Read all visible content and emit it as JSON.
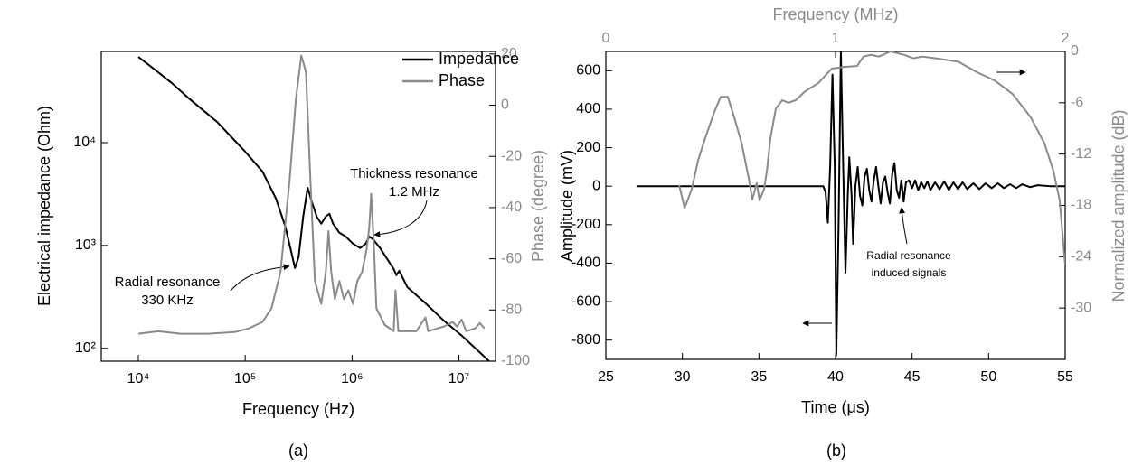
{
  "chart_data": [
    {
      "type": "line",
      "x_label": "Frequency (Hz)",
      "y_label": "Electrical impedance (Ohm)",
      "y2_label": "Phase (degree)",
      "caption": "(a)",
      "annotations": [
        "Thickness resonance",
        "1.2 MHz",
        "Radial resonance",
        "330 KHz"
      ],
      "xscale": "log",
      "yscale": "log",
      "legend": "upper right",
      "xlim": [
        4500,
        22000000
      ],
      "xticks": [
        {
          "value": 10000,
          "label": "10⁴"
        },
        {
          "value": 100000,
          "label": "10⁵"
        },
        {
          "value": 1000000,
          "label": "10⁶"
        },
        {
          "value": 10000000,
          "label": "10⁷"
        }
      ],
      "ylim": [
        75,
        77000
      ],
      "yticks": [
        {
          "value": 100,
          "label": "10²"
        },
        {
          "value": 1000,
          "label": "10³"
        },
        {
          "value": 10000,
          "label": "10⁴"
        }
      ],
      "y2lim": [
        -100,
        21
      ],
      "y2ticks": [
        20,
        0,
        -20,
        -40,
        -60,
        -80,
        -100
      ],
      "series": [
        {
          "name": "Impedance",
          "color": "#000000",
          "x": [
            10000,
            12600,
            15350,
            20600,
            30400,
            54600,
            100000,
            145000,
            194000,
            236000,
            271000,
            292000,
            316000,
            349000,
            384000,
            424000,
            467000,
            515000,
            568000,
            614000,
            664000,
            761000,
            873000,
            1020000,
            1190000,
            1340000,
            1450000,
            1570000,
            1830000,
            2450000,
            2600000,
            2760000,
            3290000,
            4860000,
            7180000,
            10600000,
            17300000,
            19100000
          ],
          "values": [
            68100,
            56700,
            48300,
            37900,
            26400,
            15900,
            8170,
            5240,
            2860,
            1560,
            851,
            604,
            770,
            1910,
            3640,
            2580,
            1910,
            1630,
            1910,
            2030,
            1630,
            1330,
            1220,
            1040,
            943,
            1040,
            1220,
            1150,
            943,
            592,
            514,
            568,
            394,
            275,
            187,
            133,
            83,
            75
          ]
        },
        {
          "name": "Phase",
          "color": "#8a8a8a",
          "axis": "y2",
          "x": [
            10000,
            15350,
            25000,
            45000,
            80700,
            108000,
            145000,
            176000,
            214000,
            260000,
            298000,
            335000,
            370000,
            408000,
            449000,
            515000,
            568000,
            602000,
            638000,
            690000,
            761000,
            839000,
            925000,
            1020000,
            1120000,
            1240000,
            1370000,
            1450000,
            1510000,
            1600000,
            1690000,
            2020000,
            2450000,
            2550000,
            2710000,
            4000000,
            4860000,
            5150000,
            7180000,
            8730000,
            9620000,
            10600000,
            11700000,
            14200000,
            15700000,
            17300000
          ],
          "values": [
            -89.3,
            -88.3,
            -89.3,
            -89.3,
            -88.6,
            -87.2,
            -84.7,
            -79.4,
            -65.2,
            -29.6,
            2.3,
            19.4,
            13.0,
            -29.6,
            -68.7,
            -77.6,
            -65.2,
            -49.2,
            -65.2,
            -75.8,
            -68.7,
            -75.8,
            -72.3,
            -77.6,
            -68.7,
            -65.2,
            -56.3,
            -47.4,
            -34.6,
            -54.5,
            -79.4,
            -85.8,
            -88.3,
            -72.3,
            -88.3,
            -88.3,
            -82.9,
            -88.3,
            -86.5,
            -84.7,
            -86.5,
            -83.7,
            -88.3,
            -87.2,
            -85.1,
            -87.2
          ]
        }
      ]
    },
    {
      "type": "line",
      "x_label": "Time (μs)",
      "y_label": "Amplitude (mV)",
      "y2_label": "Normalized amplitude (dB)",
      "x2_label": "Frequency (MHz)",
      "caption": "(b)",
      "annotations": [
        "Radial resonance",
        "induced signals"
      ],
      "xlim": [
        25,
        55
      ],
      "xticks": [
        25,
        30,
        35,
        40,
        45,
        50,
        55
      ],
      "x2lim": [
        0,
        2
      ],
      "x2ticks": [
        0,
        1,
        2
      ],
      "ylim": [
        -900,
        700
      ],
      "yticks": [
        600,
        400,
        200,
        0,
        -200,
        -400,
        -600,
        -800
      ],
      "y2lim": [
        -36,
        0
      ],
      "y2ticks": [
        0,
        -6,
        -12,
        -18,
        -24,
        -30
      ],
      "series": [
        {
          "color": "#000000",
          "x": [
            27,
            39.2,
            39.35,
            39.5,
            39.65,
            39.8,
            39.95,
            40.05,
            40.2,
            40.35,
            40.5,
            40.65,
            40.8,
            40.9,
            41.05,
            41.15,
            41.3,
            41.45,
            41.6,
            41.75,
            41.9,
            42.05,
            42.2,
            42.35,
            42.5,
            42.65,
            42.8,
            42.95,
            43.1,
            43.25,
            43.4,
            43.55,
            43.7,
            43.85,
            44.0,
            44.15,
            44.3,
            44.45,
            44.6,
            44.8,
            45.0,
            45.2,
            45.4,
            45.6,
            45.8,
            46,
            46.2,
            46.5,
            46.8,
            47.1,
            47.4,
            47.7,
            48,
            48.3,
            48.6,
            49,
            49.4,
            49.8,
            50.2,
            50.6,
            51,
            51.4,
            51.8,
            52.2,
            52.7,
            53.2,
            54,
            55
          ],
          "values": [
            0,
            0,
            -30,
            -190,
            100,
            580,
            100,
            -880,
            -200,
            700,
            100,
            -450,
            -50,
            150,
            -50,
            -300,
            0,
            100,
            -50,
            -100,
            50,
            90,
            -20,
            -80,
            30,
            100,
            0,
            -90,
            20,
            50,
            -30,
            -90,
            60,
            120,
            -20,
            -60,
            30,
            -80,
            20,
            30,
            -10,
            30,
            -20,
            20,
            -10,
            25,
            -20,
            20,
            -15,
            25,
            -20,
            20,
            -15,
            20,
            -15,
            15,
            -15,
            15,
            -10,
            15,
            -10,
            10,
            -10,
            10,
            -5,
            5,
            0,
            0
          ]
        },
        {
          "color": "#8a8a8a",
          "axis": "y2",
          "xaxis": "x2",
          "x": [
            0.319,
            0.343,
            0.374,
            0.402,
            0.433,
            0.472,
            0.5,
            0.531,
            0.559,
            0.591,
            0.622,
            0.638,
            0.657,
            0.669,
            0.689,
            0.701,
            0.717,
            0.74,
            0.768,
            0.795,
            0.827,
            0.866,
            0.925,
            0.984,
            1.043,
            1.094,
            1.122,
            1.154,
            1.189,
            1.24,
            1.299,
            1.339,
            1.378,
            1.437,
            1.535,
            1.614,
            1.693,
            1.772,
            1.85,
            1.909,
            1.949,
            1.976,
            2.0
          ],
          "values": [
            -15.6,
            -18.3,
            -16.1,
            -12.7,
            -10.1,
            -7.1,
            -5.3,
            -5.3,
            -7.7,
            -10.7,
            -14.8,
            -17.3,
            -15.4,
            -17.4,
            -16.1,
            -14.0,
            -10.1,
            -6.7,
            -5.7,
            -6.0,
            -5.7,
            -4.7,
            -3.7,
            -2.0,
            -1.8,
            -1.7,
            -0.6,
            -0.4,
            -0.6,
            0,
            -0.4,
            -0.8,
            -0.6,
            -0.8,
            -1.2,
            -2.4,
            -3.4,
            -5.0,
            -7.7,
            -10.7,
            -14.0,
            -17.4,
            -25
          ]
        }
      ]
    }
  ]
}
